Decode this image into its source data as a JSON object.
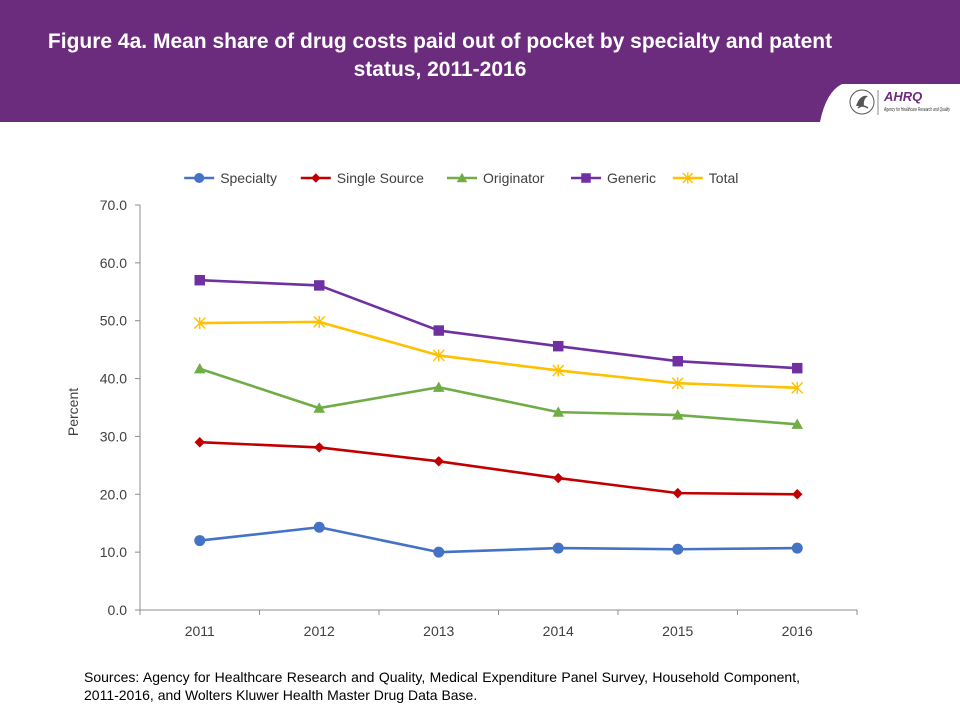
{
  "header": {
    "title": "Figure 4a. Mean share of drug costs paid out of pocket by specialty and patent status, 2011-2016",
    "logo_text": "AHRQ",
    "logo_tagline": "Agency for Healthcare Research and Quality"
  },
  "colors": {
    "banner": "#6B2C7E",
    "title_text": "#FFFFFF",
    "axis": "#8C8C8C",
    "text": "#404040"
  },
  "chart_data": {
    "type": "line",
    "title": "",
    "xlabel": "",
    "ylabel": "Percent",
    "x": [
      "2011",
      "2012",
      "2013",
      "2014",
      "2015",
      "2016"
    ],
    "ylim": [
      0,
      70
    ],
    "yticks": [
      "0.0",
      "10.0",
      "20.0",
      "30.0",
      "40.0",
      "50.0",
      "60.0",
      "70.0"
    ],
    "grid": false,
    "legend_position": "top",
    "series": [
      {
        "name": "Specialty",
        "color": "#4472C4",
        "marker": "circle",
        "values": [
          12.0,
          14.3,
          10.0,
          10.7,
          10.5,
          10.7
        ]
      },
      {
        "name": "Single Source",
        "color": "#C00000",
        "marker": "diamond",
        "values": [
          29.0,
          28.1,
          25.7,
          22.8,
          20.2,
          20.0
        ]
      },
      {
        "name": "Originator",
        "color": "#70AD47",
        "marker": "triangle",
        "values": [
          41.7,
          34.9,
          38.5,
          34.2,
          33.7,
          32.1
        ]
      },
      {
        "name": "Generic",
        "color": "#7030A0",
        "marker": "square",
        "values": [
          57.0,
          56.1,
          48.3,
          45.6,
          43.0,
          41.8
        ]
      },
      {
        "name": "Total",
        "color": "#FFC000",
        "marker": "asterisk",
        "values": [
          49.6,
          49.8,
          44.0,
          41.4,
          39.2,
          38.4
        ]
      }
    ]
  },
  "footer": {
    "sources": "Sources: Agency for Healthcare Research and Quality, Medical Expenditure Panel Survey, Household Component, 2011-2016, and Wolters Kluwer Health Master Drug Data Base."
  }
}
